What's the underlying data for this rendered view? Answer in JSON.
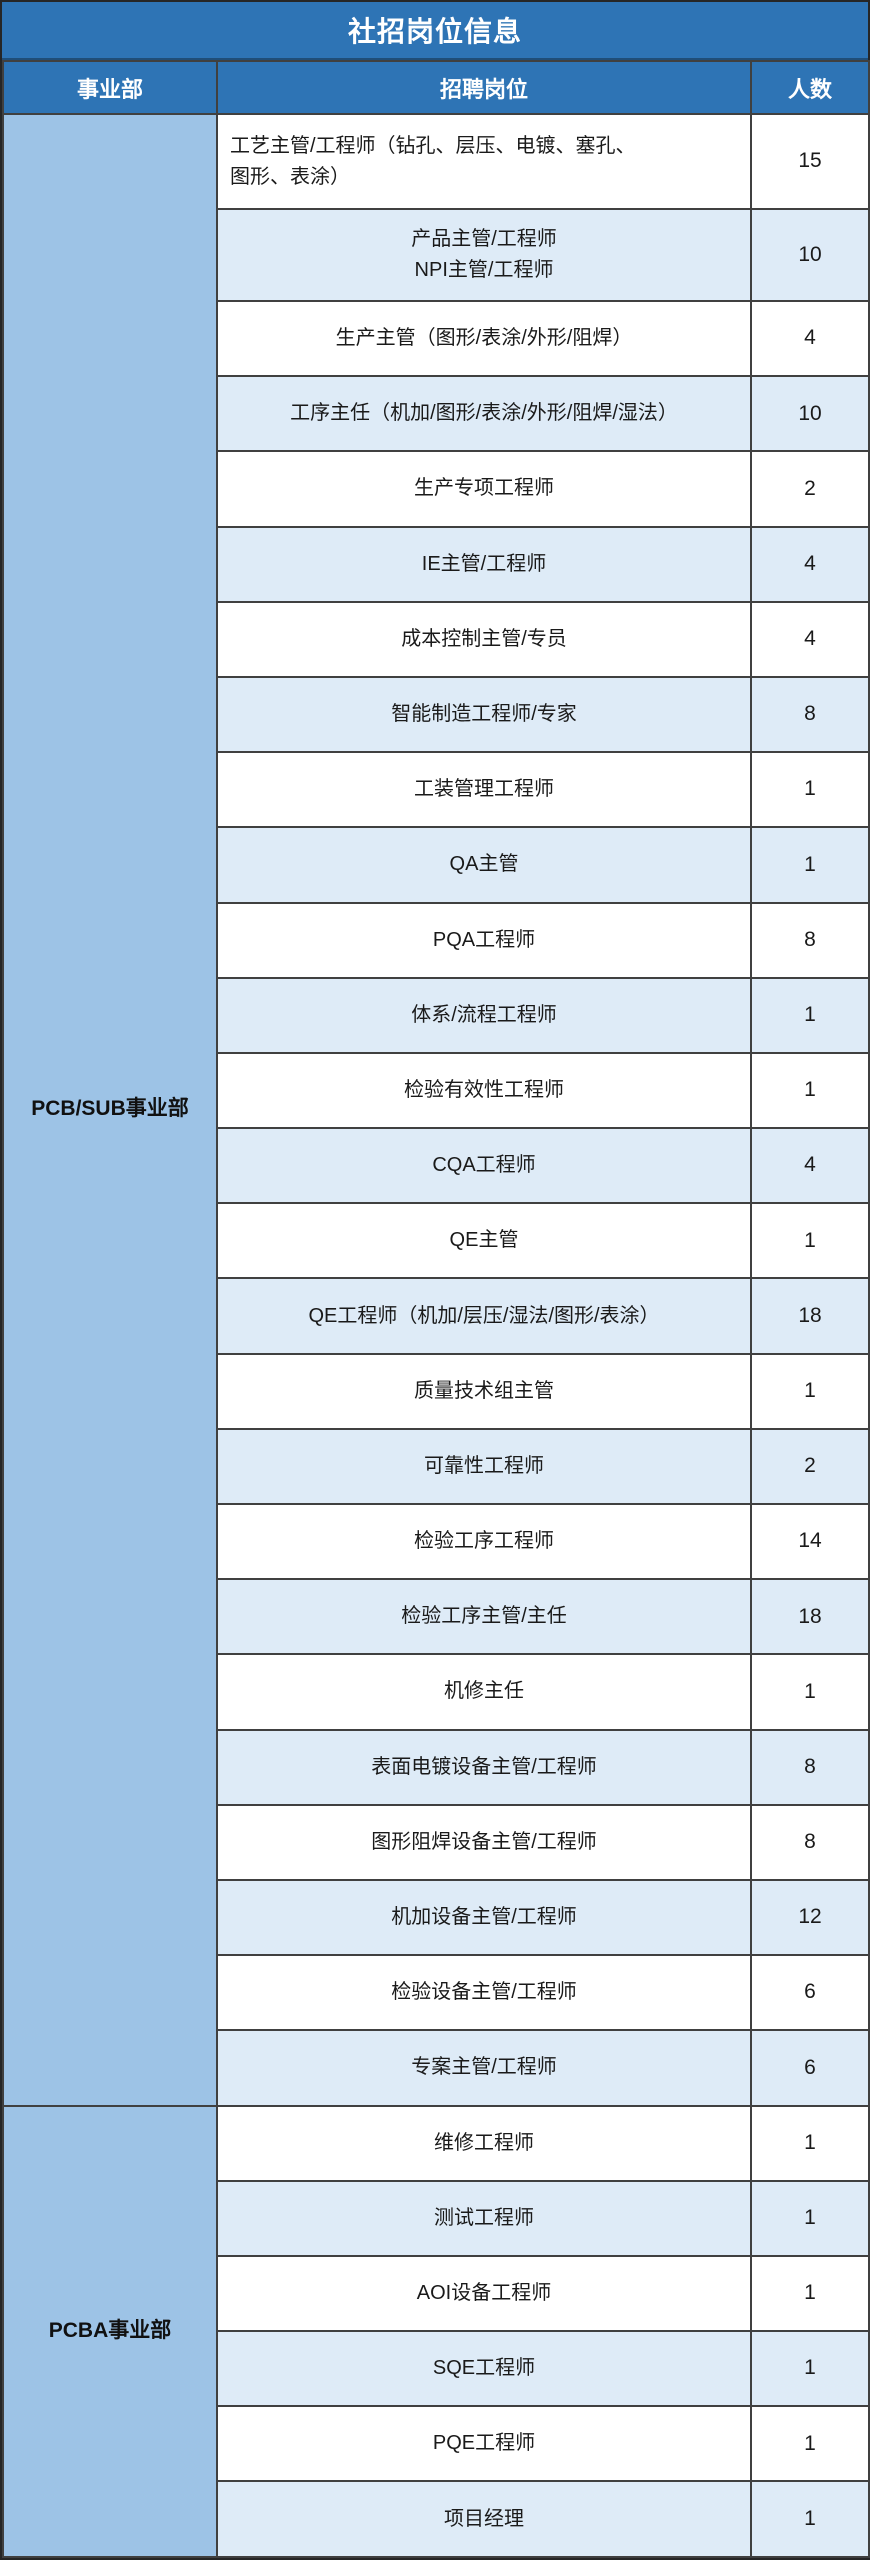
{
  "title": "社招岗位信息",
  "colors": {
    "header_blue": "#2E74B5",
    "division_bg": "#9DC3E6",
    "alt_row_bg": "#DEEBF7",
    "row_bg": "#FFFFFF",
    "header_text": "#FFFFFF",
    "body_text": "#1A1A1A",
    "border": "#404040"
  },
  "columns": {
    "division": "事业部",
    "position": "招聘岗位",
    "headcount": "人数"
  },
  "divisions": [
    {
      "name": "PCB/SUB事业部",
      "rows": [
        {
          "position": "工艺主管/工程师（钻孔、层压、电镀、塞孔、\n图形、表涂）",
          "count": 15
        },
        {
          "position": "产品主管/工程师\nNPI主管/工程师",
          "count": 10
        },
        {
          "position": "生产主管（图形/表涂/外形/阻焊）",
          "count": 4
        },
        {
          "position": "工序主任（机加/图形/表涂/外形/阻焊/湿法）",
          "count": 10
        },
        {
          "position": "生产专项工程师",
          "count": 2
        },
        {
          "position": "IE主管/工程师",
          "count": 4
        },
        {
          "position": "成本控制主管/专员",
          "count": 4
        },
        {
          "position": "智能制造工程师/专家",
          "count": 8
        },
        {
          "position": "工装管理工程师",
          "count": 1
        },
        {
          "position": "QA主管",
          "count": 1
        },
        {
          "position": "PQA工程师",
          "count": 8
        },
        {
          "position": "体系/流程工程师",
          "count": 1
        },
        {
          "position": "检验有效性工程师",
          "count": 1
        },
        {
          "position": "CQA工程师",
          "count": 4
        },
        {
          "position": "QE主管",
          "count": 1
        },
        {
          "position": "QE工程师（机加/层压/湿法/图形/表涂）",
          "count": 18
        },
        {
          "position": "质量技术组主管",
          "count": 1
        },
        {
          "position": "可靠性工程师",
          "count": 2
        },
        {
          "position": "检验工序工程师",
          "count": 14
        },
        {
          "position": "检验工序主管/主任",
          "count": 18
        },
        {
          "position": "机修主任",
          "count": 1
        },
        {
          "position": "表面电镀设备主管/工程师",
          "count": 8
        },
        {
          "position": "图形阻焊设备主管/工程师",
          "count": 8
        },
        {
          "position": "机加设备主管/工程师",
          "count": 12
        },
        {
          "position": "检验设备主管/工程师",
          "count": 6
        },
        {
          "position": "专案主管/工程师",
          "count": 6
        }
      ]
    },
    {
      "name": "PCBA事业部",
      "rows": [
        {
          "position": "维修工程师",
          "count": 1
        },
        {
          "position": "测试工程师",
          "count": 1
        },
        {
          "position": "AOI设备工程师",
          "count": 1
        },
        {
          "position": "SQE工程师",
          "count": 1
        },
        {
          "position": "PQE工程师",
          "count": 1
        },
        {
          "position": "项目经理",
          "count": 1
        }
      ]
    }
  ]
}
